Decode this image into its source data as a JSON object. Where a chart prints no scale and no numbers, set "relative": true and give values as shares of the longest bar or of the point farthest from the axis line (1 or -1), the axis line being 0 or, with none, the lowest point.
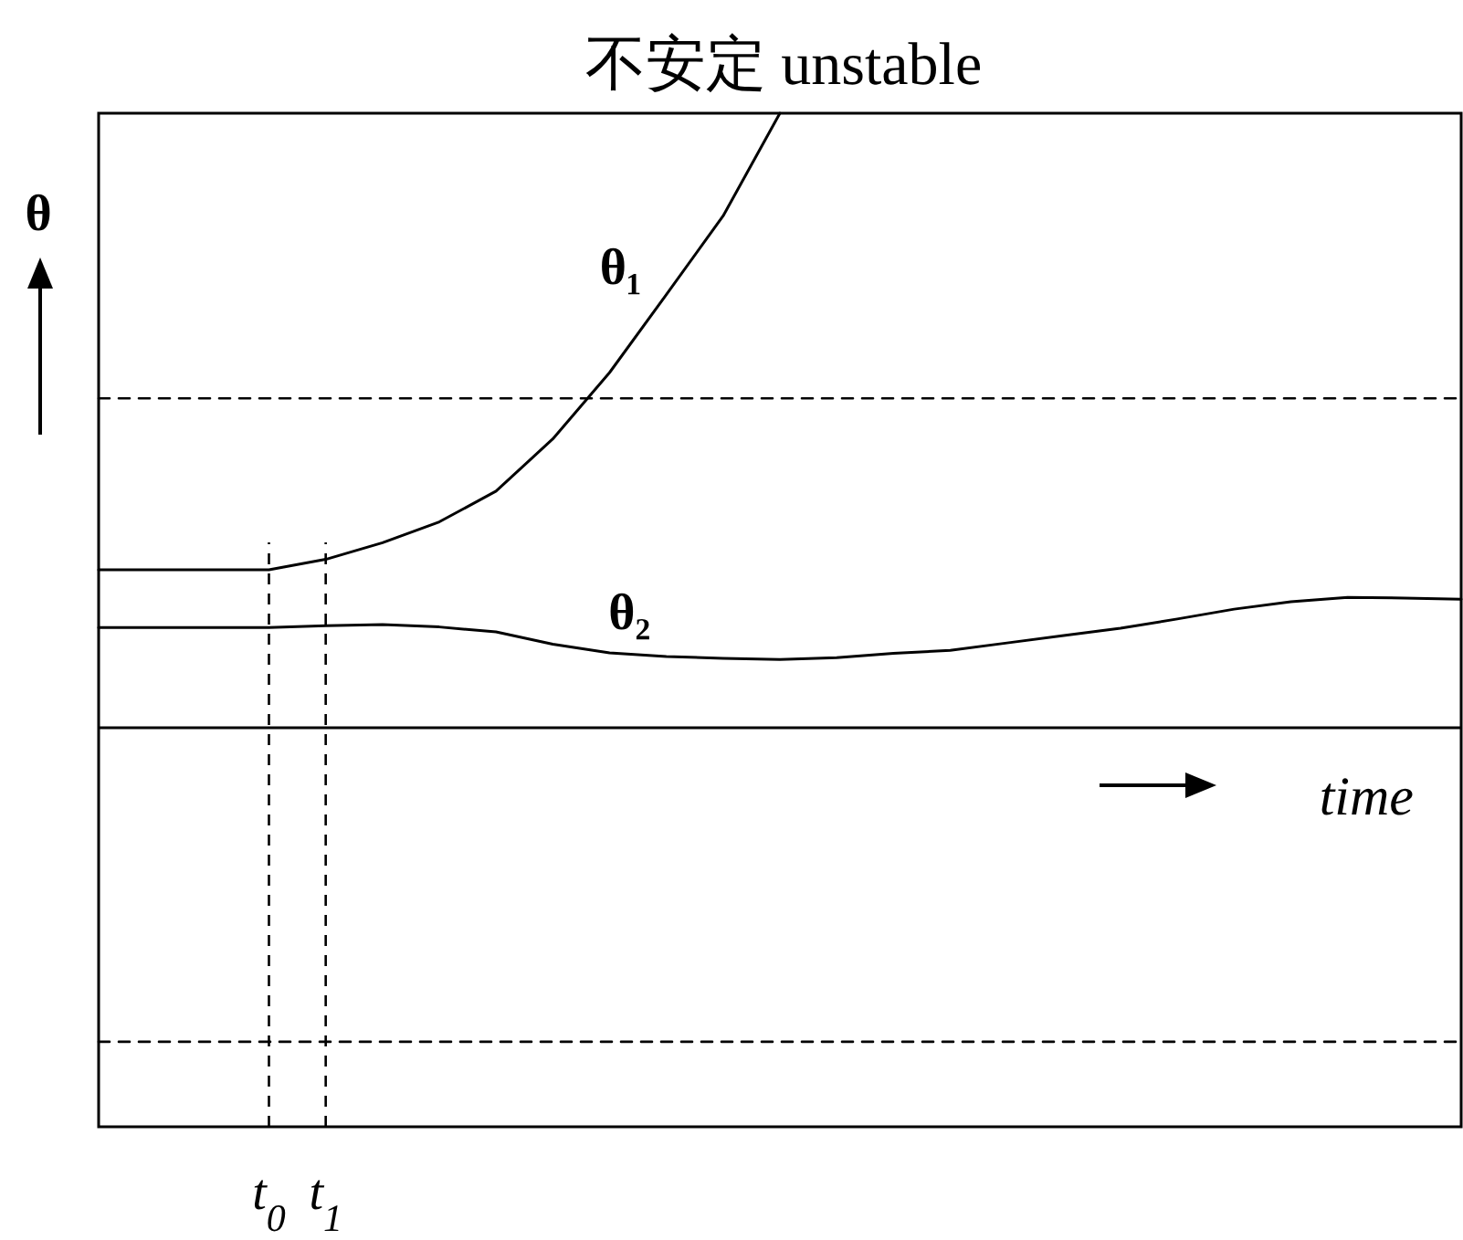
{
  "chart_data": {
    "type": "line",
    "title": "不安定  unstable",
    "xlabel": "time",
    "ylabel": "θ",
    "relative": true,
    "tick_labels": "x",
    "line_style": "solid",
    "categories": [
      null,
      null,
      null,
      "t$_{0}$",
      "t$_{1}$",
      null,
      null,
      null,
      null,
      null,
      null,
      null,
      null,
      null,
      null,
      null,
      null,
      null,
      null,
      null,
      null,
      null,
      null,
      null,
      null
    ],
    "series": [
      {
        "name": "θ₁",
        "color": "#000000",
        "values": [
          0.257,
          0.257,
          0.257,
          0.257,
          0.274,
          0.301,
          0.335,
          0.385,
          0.47,
          0.578,
          0.705,
          0.833,
          1.0,
          null,
          null,
          null,
          null,
          null,
          null,
          null,
          null,
          null,
          null,
          null,
          null
        ]
      },
      {
        "name": "θ₂",
        "color": "#000000",
        "values": [
          0.163,
          0.163,
          0.163,
          0.163,
          0.166,
          0.168,
          0.164,
          0.156,
          0.136,
          0.122,
          0.116,
          0.113,
          0.111,
          0.114,
          0.121,
          0.126,
          0.138,
          0.15,
          0.162,
          0.177,
          0.193,
          0.205,
          0.212,
          0.211,
          0.209
        ]
      },
      {
        "color": "#000000",
        "line_style": "dashed",
        "values": [
          0.536,
          0.536,
          0.536,
          0.536,
          0.536,
          0.536,
          0.536,
          0.536,
          0.536,
          0.536,
          0.536,
          0.536,
          0.536,
          0.536,
          0.536,
          0.536,
          0.536,
          0.536,
          0.536,
          0.536,
          0.536,
          0.536,
          0.536,
          0.536,
          0.536
        ]
      },
      {
        "color": "#000000",
        "line_style": "dashed",
        "values": [
          -0.511,
          -0.511,
          -0.511,
          -0.511,
          -0.511,
          -0.511,
          -0.511,
          -0.511,
          -0.511,
          -0.511,
          -0.511,
          -0.511,
          -0.511,
          -0.511,
          -0.511,
          -0.511,
          -0.511,
          -0.511,
          -0.511,
          -0.511,
          -0.511,
          -0.511,
          -0.511,
          -0.511,
          -0.511
        ]
      }
    ],
    "ref_lines": [
      {
        "axis": "x",
        "value": "t$_{0}$",
        "line_style": "dashed"
      },
      {
        "axis": "x",
        "value": "t$_{1}$",
        "line_style": "dashed"
      }
    ]
  }
}
